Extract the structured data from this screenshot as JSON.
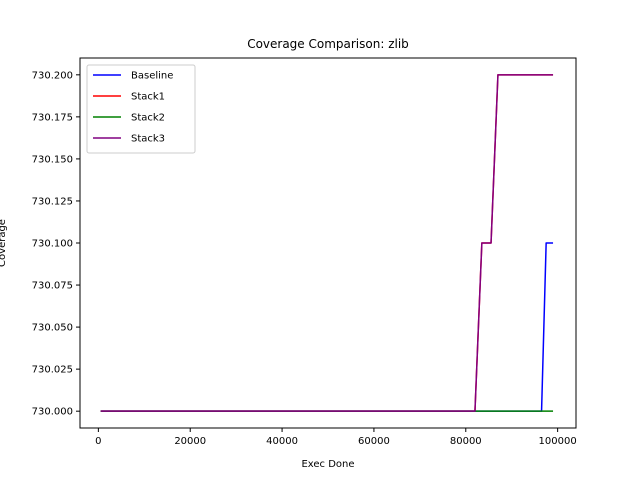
{
  "chart_data": {
    "type": "line",
    "title": "Coverage Comparison: zlib",
    "xlabel": "Exec Done",
    "ylabel": "Coverage",
    "xlim": [
      -4000,
      104000
    ],
    "ylim": [
      729.99,
      730.21
    ],
    "xticks": [
      0,
      20000,
      40000,
      60000,
      80000,
      100000
    ],
    "xtick_labels": [
      "0",
      "20000",
      "40000",
      "60000",
      "80000",
      "100000"
    ],
    "yticks": [
      730.0,
      730.025,
      730.05,
      730.075,
      730.1,
      730.125,
      730.15,
      730.175,
      730.2
    ],
    "ytick_labels": [
      "730.000",
      "730.025",
      "730.050",
      "730.075",
      "730.100",
      "730.125",
      "730.150",
      "730.175",
      "730.200"
    ],
    "grid": false,
    "legend_position": "top-left",
    "series": [
      {
        "name": "Baseline",
        "color": "#0000ff",
        "x": [
          500,
          96500,
          97500,
          99000
        ],
        "y": [
          730.0,
          730.0,
          730.1,
          730.1
        ]
      },
      {
        "name": "Stack1",
        "color": "#ff0000",
        "x": [
          500,
          82000,
          83500,
          85500,
          87000,
          99000
        ],
        "y": [
          730.0,
          730.0,
          730.1,
          730.1,
          730.2,
          730.2
        ]
      },
      {
        "name": "Stack2",
        "color": "#008000",
        "x": [
          500,
          99000
        ],
        "y": [
          730.0,
          730.0
        ]
      },
      {
        "name": "Stack3",
        "color": "#800080",
        "x": [
          500,
          82000,
          83500,
          85500,
          87000,
          99000
        ],
        "y": [
          730.0,
          730.0,
          730.1,
          730.1,
          730.2,
          730.2
        ]
      }
    ]
  }
}
